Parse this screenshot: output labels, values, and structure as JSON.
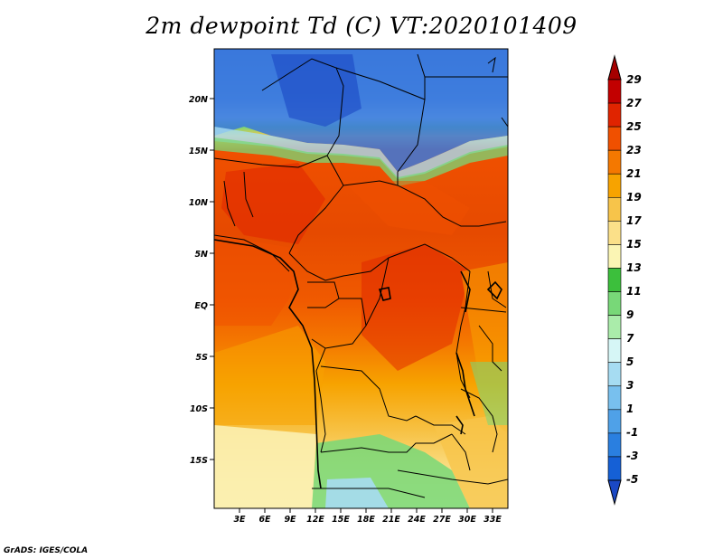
{
  "title": "2m dewpoint Td (C) VT:2020101409",
  "credit": "GrADS: IGES/COLA",
  "map": {
    "lat_labels": [
      "20N",
      "15N",
      "10N",
      "5N",
      "EQ",
      "5S",
      "10S",
      "15S"
    ],
    "lon_labels": [
      "3E",
      "6E",
      "9E",
      "12E",
      "15E",
      "18E",
      "21E",
      "24E",
      "27E",
      "30E",
      "33E"
    ]
  },
  "colorbar": {
    "labels": [
      "29",
      "27",
      "25",
      "23",
      "21",
      "19",
      "17",
      "15",
      "13",
      "11",
      "9",
      "7",
      "5",
      "3",
      "1",
      "-1",
      "-3",
      "-5"
    ],
    "colors": [
      "#a50000",
      "#c20000",
      "#e02400",
      "#f05000",
      "#f47800",
      "#f7a300",
      "#f7c44a",
      "#fbe089",
      "#fbf5b4",
      "#3cbf3c",
      "#78d878",
      "#aaecaa",
      "#d6f6f6",
      "#a6dcf2",
      "#78c0ee",
      "#4fa1e8",
      "#2a7fe0",
      "#1560d6",
      "#1a48c4"
    ]
  }
}
